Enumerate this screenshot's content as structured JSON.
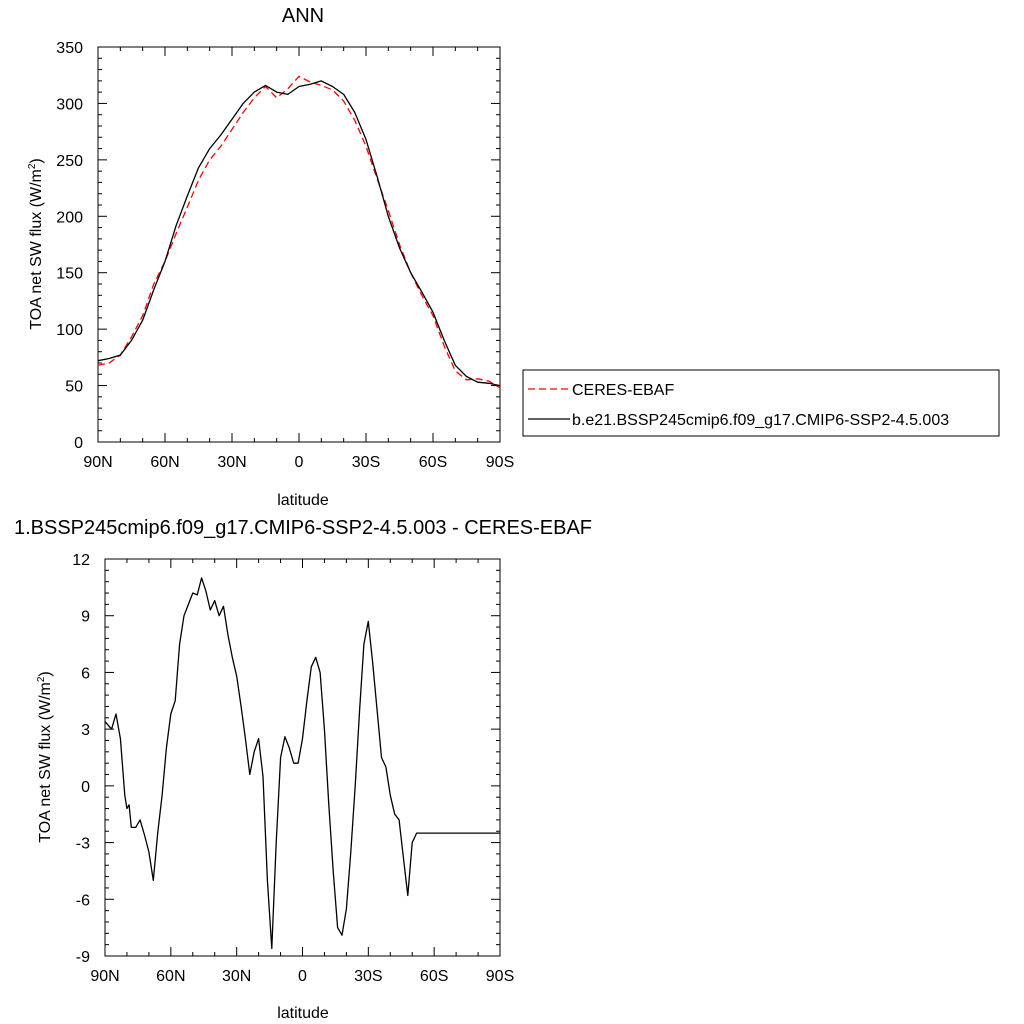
{
  "chart_data": [
    {
      "type": "line",
      "title": "ANN",
      "xlabel": "latitude",
      "ylabel": "TOA net SW flux (W/m",
      "ylabel_sup": "2",
      "ylabel_close": ")",
      "xlim": [
        90,
        -90
      ],
      "ylim": [
        0,
        350
      ],
      "x_ticks": [
        {
          "value": 90,
          "label": "90N"
        },
        {
          "value": 60,
          "label": "60N"
        },
        {
          "value": 30,
          "label": "30N"
        },
        {
          "value": 0,
          "label": "0"
        },
        {
          "value": -30,
          "label": "30S"
        },
        {
          "value": -60,
          "label": "60S"
        },
        {
          "value": -90,
          "label": "90S"
        }
      ],
      "y_ticks": [
        {
          "value": 0,
          "label": "0"
        },
        {
          "value": 50,
          "label": "50"
        },
        {
          "value": 100,
          "label": "100"
        },
        {
          "value": 150,
          "label": "150"
        },
        {
          "value": 200,
          "label": "200"
        },
        {
          "value": 250,
          "label": "250"
        },
        {
          "value": 300,
          "label": "300"
        },
        {
          "value": 350,
          "label": "350"
        }
      ],
      "grid": false,
      "legend_position": "right",
      "series": [
        {
          "name": "CERES-EBAF",
          "color": "#ff0000",
          "dash": true,
          "x": [
            90,
            85,
            80,
            75,
            70,
            65,
            60,
            55,
            50,
            45,
            40,
            35,
            30,
            25,
            20,
            15,
            10,
            5,
            0,
            -5,
            -10,
            -15,
            -20,
            -25,
            -30,
            -35,
            -40,
            -45,
            -50,
            -55,
            -60,
            -65,
            -70,
            -75,
            -80,
            -85,
            -90
          ],
          "y": [
            68,
            70,
            77,
            93,
            112,
            140,
            160,
            185,
            208,
            232,
            250,
            262,
            277,
            292,
            305,
            315,
            305,
            313,
            324,
            319,
            316,
            312,
            302,
            285,
            262,
            233,
            205,
            175,
            150,
            130,
            112,
            85,
            63,
            55,
            56,
            54,
            48
          ]
        },
        {
          "name": "b.e21.BSSP245cmip6.f09_g17.CMIP6-SSP2-4.5.003",
          "color": "#000000",
          "dash": false,
          "x": [
            90,
            85,
            80,
            75,
            70,
            65,
            60,
            55,
            50,
            45,
            40,
            35,
            30,
            25,
            20,
            15,
            10,
            5,
            0,
            -5,
            -10,
            -15,
            -20,
            -25,
            -30,
            -35,
            -40,
            -45,
            -50,
            -55,
            -60,
            -65,
            -70,
            -75,
            -80,
            -85,
            -90
          ],
          "y": [
            72,
            74,
            77,
            90,
            108,
            135,
            160,
            192,
            218,
            243,
            260,
            272,
            286,
            300,
            310,
            316,
            310,
            308,
            315,
            317,
            320,
            315,
            308,
            292,
            268,
            235,
            200,
            172,
            150,
            133,
            115,
            90,
            68,
            58,
            53,
            52,
            50
          ]
        }
      ]
    },
    {
      "type": "line",
      "title": "1.BSSP245cmip6.f09_g17.CMIP6-SSP2-4.5.003 - CERES-EBAF",
      "xlabel": "latitude",
      "ylabel": "TOA net SW flux (W/m",
      "ylabel_sup": "2",
      "ylabel_close": ")",
      "xlim": [
        90,
        -90
      ],
      "ylim": [
        -9,
        12
      ],
      "x_ticks": [
        {
          "value": 90,
          "label": "90N"
        },
        {
          "value": 60,
          "label": "60N"
        },
        {
          "value": 30,
          "label": "30N"
        },
        {
          "value": 0,
          "label": "0"
        },
        {
          "value": -30,
          "label": "30S"
        },
        {
          "value": -60,
          "label": "60S"
        },
        {
          "value": -90,
          "label": "90S"
        }
      ],
      "y_ticks": [
        {
          "value": -9,
          "label": "-9"
        },
        {
          "value": -6,
          "label": "-6"
        },
        {
          "value": -3,
          "label": "-3"
        },
        {
          "value": 0,
          "label": "0"
        },
        {
          "value": 3,
          "label": "3"
        },
        {
          "value": 6,
          "label": "6"
        },
        {
          "value": 9,
          "label": "9"
        },
        {
          "value": 12,
          "label": "12"
        }
      ],
      "grid": false,
      "series": [
        {
          "color": "#000000",
          "dash": false,
          "x": [
            90,
            87,
            85,
            83,
            81,
            80,
            79,
            78,
            76,
            74,
            72,
            70,
            68,
            66,
            64,
            62,
            60,
            58,
            56,
            54,
            52,
            50,
            48,
            46,
            44,
            42,
            40,
            38,
            36,
            34,
            32,
            30,
            28,
            26,
            24,
            22,
            20,
            18,
            16,
            14,
            12,
            10,
            8,
            6,
            4,
            2,
            0,
            -2,
            -4,
            -6,
            -8,
            -10,
            -12,
            -14,
            -16,
            -18,
            -20,
            -22,
            -24,
            -26,
            -28,
            -30,
            -32,
            -34,
            -36,
            -38,
            -40,
            -42,
            -44,
            -46,
            -48,
            -50,
            -52,
            -54,
            -56,
            -58,
            -60,
            -62,
            -64,
            -66,
            -68,
            -70,
            -72,
            -74,
            -76,
            -78,
            -80,
            -82,
            -84,
            -86,
            -88,
            -90
          ],
          "y": [
            3.4,
            3.0,
            3.8,
            2.5,
            -0.5,
            -1.2,
            -1.0,
            -2.2,
            -2.2,
            -1.8,
            -2.6,
            -3.5,
            -5.0,
            -2.5,
            -0.5,
            2.0,
            3.8,
            4.5,
            7.5,
            9.0,
            9.6,
            10.2,
            10.1,
            11.0,
            10.3,
            9.3,
            9.8,
            9.0,
            9.5,
            8.0,
            6.8,
            5.8,
            4.2,
            2.5,
            0.6,
            1.8,
            2.5,
            0.5,
            -5.0,
            -8.6,
            -3.0,
            1.5,
            2.6,
            2.0,
            1.2,
            1.2,
            2.5,
            4.5,
            6.3,
            6.8,
            6.0,
            3.0,
            -1.0,
            -4.5,
            -7.5,
            -7.9,
            -6.5,
            -3.5,
            0.0,
            4.0,
            7.5,
            8.7,
            6.5,
            4.0,
            1.5,
            1.0,
            -0.5,
            -1.5,
            -1.8,
            -3.8,
            -5.8,
            -3.0,
            -2.5,
            -2.5,
            -2.5,
            -2.5,
            -2.5,
            -2.5,
            -2.5,
            -2.5,
            -2.5,
            -2.5,
            -2.5,
            -2.5,
            -2.5,
            -2.5,
            -2.5,
            -2.5,
            -2.5,
            -2.5,
            -2.5,
            -2.5
          ]
        }
      ]
    }
  ]
}
